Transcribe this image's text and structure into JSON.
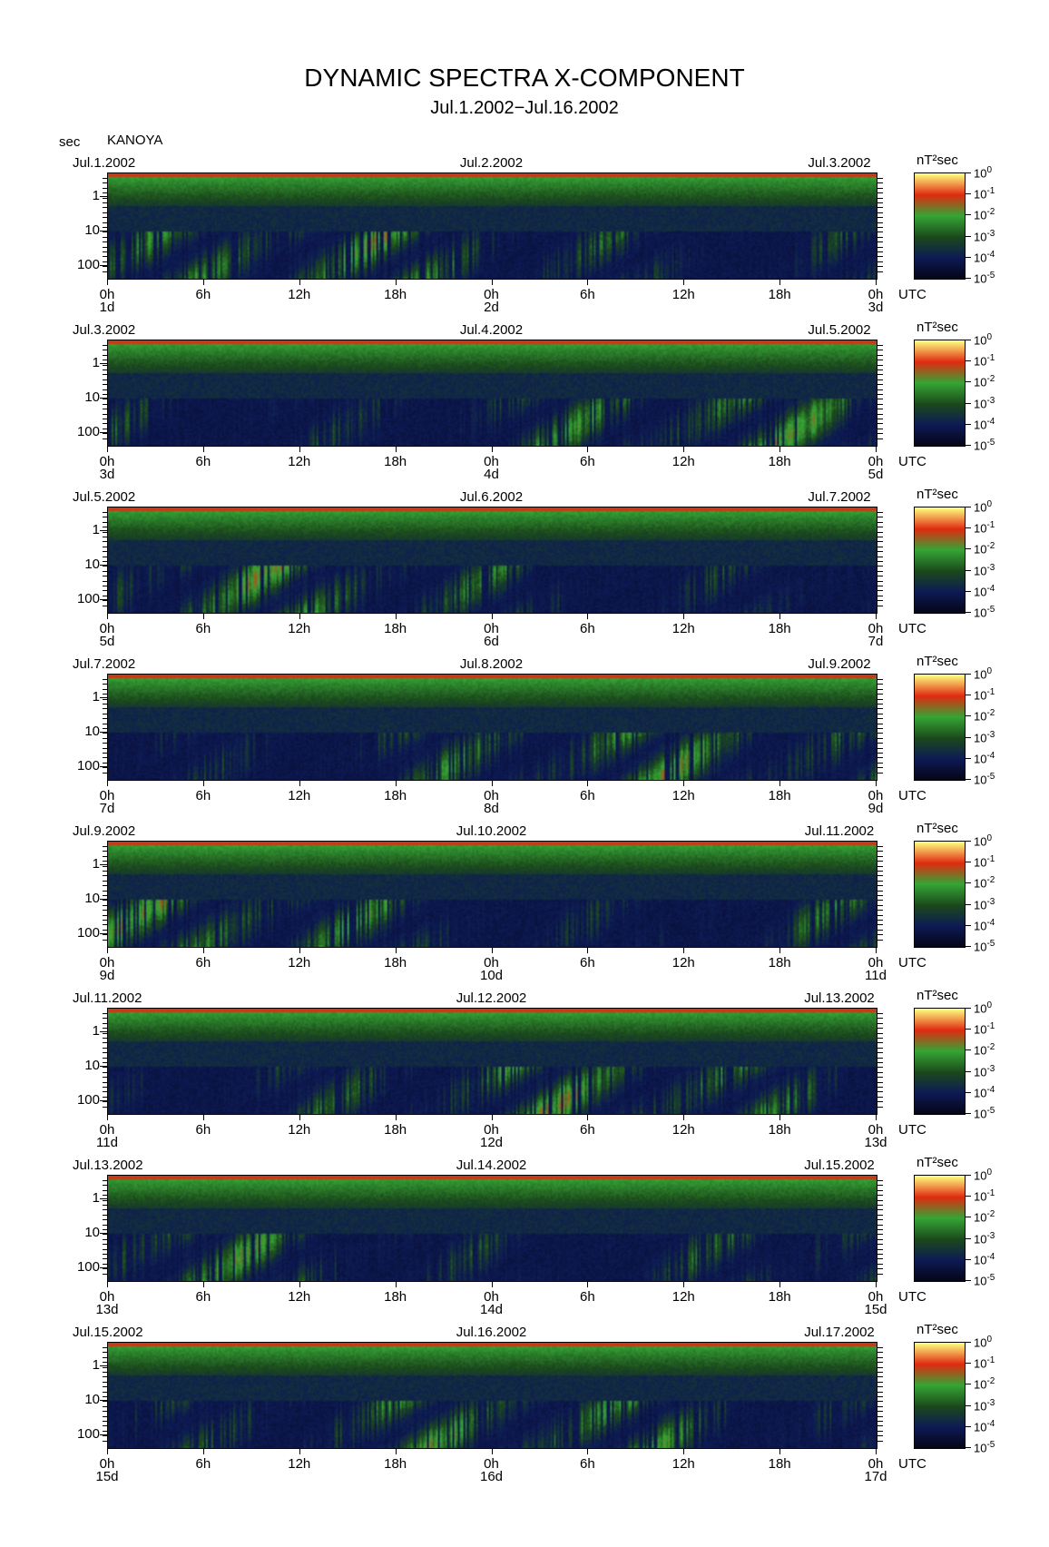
{
  "chart_data": {
    "type": "heatmap",
    "title": "DYNAMIC SPECTRA X-COMPONENT",
    "subtitle": "Jul.1.2002−Jul.16.2002",
    "y_unit": "sec",
    "station": "KANOYA",
    "colorbar_unit": "nT²sec",
    "y_ticks": [
      "1",
      "10",
      "100"
    ],
    "x_ticks": [
      "0h",
      "6h",
      "12h",
      "18h",
      "0h",
      "6h",
      "12h",
      "18h",
      "0h"
    ],
    "x_unit": "UTC",
    "colorbar_exponents": [
      "0",
      "-1",
      "-2",
      "-3",
      "-4",
      "-5"
    ],
    "colorbar_base": "10",
    "colorscale": [
      "#050515",
      "#0d1a55",
      "#1c4a1c",
      "#35a535",
      "#e02a10",
      "#ffff80"
    ],
    "panels": [
      {
        "date_left": "Jul.1.2002",
        "date_mid": "Jul.2.2002",
        "date_right": "Jul.3.2002",
        "days": [
          "1d",
          "2d",
          "3d"
        ]
      },
      {
        "date_left": "Jul.3.2002",
        "date_mid": "Jul.4.2002",
        "date_right": "Jul.5.2002",
        "days": [
          "3d",
          "4d",
          "5d"
        ]
      },
      {
        "date_left": "Jul.5.2002",
        "date_mid": "Jul.6.2002",
        "date_right": "Jul.7.2002",
        "days": [
          "5d",
          "6d",
          "7d"
        ]
      },
      {
        "date_left": "Jul.7.2002",
        "date_mid": "Jul.8.2002",
        "date_right": "Jul.9.2002",
        "days": [
          "7d",
          "8d",
          "9d"
        ]
      },
      {
        "date_left": "Jul.9.2002",
        "date_mid": "Jul.10.2002",
        "date_right": "Jul.11.2002",
        "days": [
          "9d",
          "10d",
          "11d"
        ]
      },
      {
        "date_left": "Jul.11.2002",
        "date_mid": "Jul.12.2002",
        "date_right": "Jul.13.2002",
        "days": [
          "11d",
          "12d",
          "13d"
        ]
      },
      {
        "date_left": "Jul.13.2002",
        "date_mid": "Jul.14.2002",
        "date_right": "Jul.15.2002",
        "days": [
          "13d",
          "14d",
          "15d"
        ]
      },
      {
        "date_left": "Jul.15.2002",
        "date_mid": "Jul.16.2002",
        "date_right": "Jul.17.2002",
        "days": [
          "15d",
          "16d",
          "17d"
        ]
      }
    ]
  }
}
